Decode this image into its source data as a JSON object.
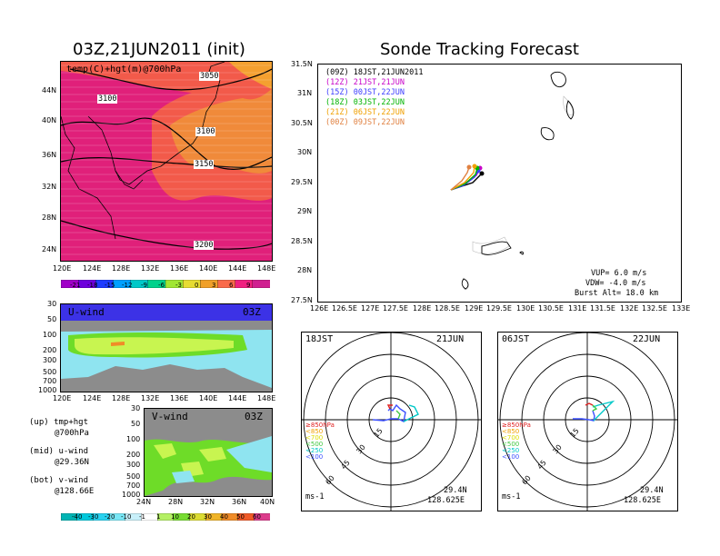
{
  "left_title": "03Z,21JUN2011 (init)",
  "right_title": "Sonde Tracking Forecast",
  "map_panel": {
    "label": "temp(C)+hgt(m)@700hPa",
    "contours": [
      "3050",
      "3100",
      "3100",
      "3150",
      "3200"
    ],
    "lat_ticks": [
      "44N",
      "40N",
      "36N",
      "32N",
      "28N",
      "24N"
    ],
    "lon_ticks": [
      "120E",
      "124E",
      "128E",
      "132E",
      "136E",
      "140E",
      "144E",
      "148E"
    ],
    "colorbar_labels": [
      "-21",
      "-18",
      "-15",
      "-12",
      "-9",
      "-6",
      "-3",
      "0",
      "3",
      "6",
      "9"
    ],
    "colorbar_colors": [
      "#a000c8",
      "#6e00dc",
      "#1e3cff",
      "#00a0ff",
      "#00c8c8",
      "#00d28c",
      "#a0e632",
      "#e6dc32",
      "#f0a028",
      "#fa6a4a",
      "#f02080",
      "#d02090"
    ]
  },
  "u_panel": {
    "label": "U-wind",
    "time": "03Z",
    "p_ticks": [
      "30",
      "50",
      "100",
      "200",
      "300",
      "500",
      "700",
      "1000"
    ],
    "lon_ticks": [
      "120E",
      "124E",
      "128E",
      "132E",
      "136E",
      "140E",
      "144E",
      "148E"
    ]
  },
  "v_panel": {
    "label": "V-wind",
    "time": "03Z",
    "p_ticks": [
      "30",
      "50",
      "100",
      "200",
      "300",
      "500",
      "700",
      "1000"
    ],
    "lat_ticks": [
      "24N",
      "28N",
      "32N",
      "36N",
      "40N"
    ]
  },
  "notes": [
    {
      "a": "(up) tmp+hgt",
      "b": "@700hPa"
    },
    {
      "a": "(mid) u-wind",
      "b": "@29.36N"
    },
    {
      "a": "(bot) v-wind",
      "b": "@128.66E"
    }
  ],
  "wind_colorbar": {
    "labels": [
      "-40",
      "-30",
      "-20",
      "-10",
      "-1",
      "1",
      "10",
      "20",
      "30",
      "40",
      "50",
      "60"
    ],
    "colors": [
      "#00b4b4",
      "#00c8dc",
      "#28d2f0",
      "#78e6f5",
      "#c8f0fa",
      "#ffffff",
      "#b4f064",
      "#78dc32",
      "#dcdc32",
      "#f0b428",
      "#f08c28",
      "#f05a28",
      "#dc3c8c"
    ]
  },
  "track": {
    "lat_ticks": [
      "31.5N",
      "31N",
      "30.5N",
      "30N",
      "29.5N",
      "29N",
      "28.5N",
      "28N",
      "27.5N"
    ],
    "lon_ticks": [
      "126E",
      "126.5E",
      "127E",
      "127.5E",
      "128E",
      "128.5E",
      "129E",
      "129.5E",
      "130E",
      "130.5E",
      "131E",
      "131.5E",
      "132E",
      "132.5E",
      "133E"
    ],
    "legend": [
      {
        "text": "(09Z) 18JST,21JUN2011",
        "color": "#000000"
      },
      {
        "text": "(12Z) 21JST,21JUN",
        "color": "#c800c8"
      },
      {
        "text": "(15Z) 00JST,22JUN",
        "color": "#3c3cff"
      },
      {
        "text": "(18Z) 03JST,22JUN",
        "color": "#00b400"
      },
      {
        "text": "(21Z) 06JST,22JUN",
        "color": "#f0a000"
      },
      {
        "text": "(00Z) 09JST,22JUN",
        "color": "#e08040"
      }
    ],
    "vup": "VUP= 6.0 m/s",
    "vdw": "VDW= -4.0 m/s",
    "burst": "Burst Alt= 18.0 km"
  },
  "hodographs": [
    {
      "time": "18JST",
      "date": "21JUN",
      "lat": "29.4N",
      "lon": "128.625E",
      "unit": "ms-1",
      "rings": [
        "15",
        "30",
        "45",
        "60"
      ],
      "levels": [
        "≥850hPa",
        "<850",
        "<700",
        "<500",
        "<250",
        "<100"
      ]
    },
    {
      "time": "06JST",
      "date": "22JUN",
      "lat": "29.4N",
      "lon": "128.625E",
      "unit": "ms-1",
      "rings": [
        "15",
        "30",
        "45",
        "60"
      ],
      "levels": [
        "≥850hPa",
        "<850",
        "<700",
        "<500",
        "<250",
        "<100"
      ]
    }
  ],
  "level_colors": [
    "#e02020",
    "#f0a000",
    "#dcdc00",
    "#40c840",
    "#00c8c8",
    "#3c50ff"
  ]
}
